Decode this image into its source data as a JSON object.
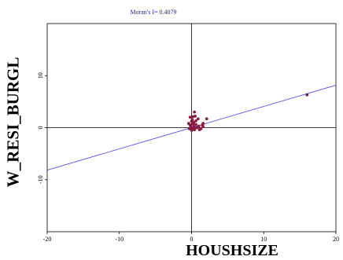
{
  "chart_data": {
    "type": "scatter",
    "title": "Moran's I= 0.4079",
    "xlabel": "HOUSHSIZE",
    "ylabel": "W_RESI_BURGL",
    "xlim": [
      -20,
      20
    ],
    "ylim": [
      -20,
      20
    ],
    "x_ticks": [
      -20,
      -10,
      0,
      10,
      20
    ],
    "y_ticks": [
      -10,
      0,
      10
    ],
    "grid": false,
    "regression_line": {
      "slope": 0.4079,
      "intercept": 0,
      "color": "#5555ee"
    },
    "point_color": "#8b1a40",
    "points": [
      {
        "x": -0.3,
        "y": -0.2
      },
      {
        "x": -0.1,
        "y": 0.1
      },
      {
        "x": 0.1,
        "y": -0.3
      },
      {
        "x": 0.3,
        "y": 0.2
      },
      {
        "x": 0.5,
        "y": -0.1
      },
      {
        "x": 0.8,
        "y": 0.0
      },
      {
        "x": 1.0,
        "y": 0.3
      },
      {
        "x": 1.3,
        "y": -0.2
      },
      {
        "x": 1.6,
        "y": 0.2
      },
      {
        "x": -0.2,
        "y": 0.5
      },
      {
        "x": 0.2,
        "y": 0.7
      },
      {
        "x": 0.6,
        "y": 0.6
      },
      {
        "x": 0.0,
        "y": -0.5
      },
      {
        "x": 0.4,
        "y": -0.4
      },
      {
        "x": 1.1,
        "y": -0.4
      },
      {
        "x": 0.0,
        "y": 1.2
      },
      {
        "x": 0.3,
        "y": 1.0
      },
      {
        "x": -0.2,
        "y": 2.0
      },
      {
        "x": 0.2,
        "y": 2.1
      },
      {
        "x": 0.5,
        "y": 2.2
      },
      {
        "x": 0.1,
        "y": 1.5
      },
      {
        "x": 0.6,
        "y": 1.3
      },
      {
        "x": 0.4,
        "y": 3.0
      },
      {
        "x": 1.6,
        "y": 0.8
      },
      {
        "x": 1.5,
        "y": 0.5
      },
      {
        "x": 2.1,
        "y": 1.7
      },
      {
        "x": 16.0,
        "y": 6.3
      },
      {
        "x": -0.4,
        "y": 0.8
      },
      {
        "x": 0.9,
        "y": 1.7
      }
    ]
  }
}
